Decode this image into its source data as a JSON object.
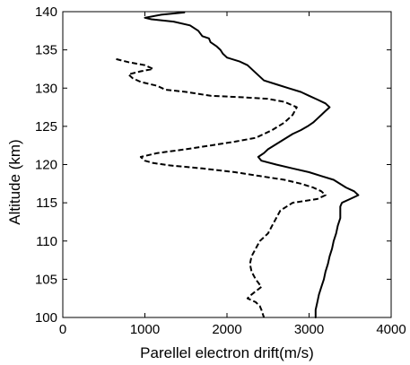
{
  "chart_data": {
    "type": "line",
    "xlabel": "Parellel electron drift(m/s)",
    "ylabel": "Altitude (km)",
    "xlim": [
      0,
      4000
    ],
    "ylim": [
      100,
      140
    ],
    "xticks": [
      0,
      1000,
      2000,
      3000,
      4000
    ],
    "yticks": [
      100,
      105,
      110,
      115,
      120,
      125,
      130,
      135,
      140
    ],
    "grid": false,
    "series": [
      {
        "style": "solid",
        "color": "#000000",
        "points": [
          [
            1480,
            139.9
          ],
          [
            1200,
            139.6
          ],
          [
            1000,
            139.2
          ],
          [
            1080,
            139.0
          ],
          [
            1350,
            138.7
          ],
          [
            1550,
            138.2
          ],
          [
            1650,
            137.5
          ],
          [
            1700,
            136.8
          ],
          [
            1780,
            136.5
          ],
          [
            1800,
            136.0
          ],
          [
            1870,
            135.5
          ],
          [
            1920,
            135.0
          ],
          [
            1950,
            134.5
          ],
          [
            2000,
            134.0
          ],
          [
            2150,
            133.5
          ],
          [
            2250,
            133.0
          ],
          [
            2350,
            132.0
          ],
          [
            2450,
            131.0
          ],
          [
            2600,
            130.5
          ],
          [
            2750,
            130.0
          ],
          [
            2900,
            129.5
          ],
          [
            3000,
            129.0
          ],
          [
            3100,
            128.5
          ],
          [
            3200,
            128.0
          ],
          [
            3250,
            127.5
          ],
          [
            3200,
            127.0
          ],
          [
            3150,
            126.5
          ],
          [
            3100,
            126.0
          ],
          [
            3050,
            125.5
          ],
          [
            2980,
            125.0
          ],
          [
            2900,
            124.5
          ],
          [
            2800,
            124.0
          ],
          [
            2650,
            123.0
          ],
          [
            2500,
            122.0
          ],
          [
            2450,
            121.5
          ],
          [
            2380,
            121.0
          ],
          [
            2420,
            120.5
          ],
          [
            2600,
            120.0
          ],
          [
            2800,
            119.5
          ],
          [
            3000,
            119.0
          ],
          [
            3150,
            118.5
          ],
          [
            3300,
            118.0
          ],
          [
            3450,
            117.0
          ],
          [
            3550,
            116.5
          ],
          [
            3600,
            116.0
          ],
          [
            3500,
            115.5
          ],
          [
            3400,
            115.0
          ],
          [
            3380,
            114.5
          ],
          [
            3380,
            113.0
          ],
          [
            3350,
            112.0
          ],
          [
            3330,
            111.0
          ],
          [
            3300,
            110.0
          ],
          [
            3280,
            109.0
          ],
          [
            3250,
            108.0
          ],
          [
            3230,
            107.0
          ],
          [
            3200,
            106.0
          ],
          [
            3180,
            105.0
          ],
          [
            3150,
            104.0
          ],
          [
            3120,
            103.0
          ],
          [
            3100,
            102.0
          ],
          [
            3080,
            101.0
          ],
          [
            3080,
            100.0
          ]
        ]
      },
      {
        "style": "dashed",
        "color": "#000000",
        "points": [
          [
            650,
            133.8
          ],
          [
            800,
            133.4
          ],
          [
            1000,
            133.0
          ],
          [
            1100,
            132.5
          ],
          [
            950,
            132.2
          ],
          [
            800,
            131.8
          ],
          [
            850,
            131.3
          ],
          [
            950,
            130.8
          ],
          [
            1150,
            130.3
          ],
          [
            1250,
            129.8
          ],
          [
            1500,
            129.5
          ],
          [
            1800,
            129.0
          ],
          [
            2200,
            128.8
          ],
          [
            2500,
            128.6
          ],
          [
            2700,
            128.2
          ],
          [
            2850,
            127.5
          ],
          [
            2800,
            126.5
          ],
          [
            2700,
            125.5
          ],
          [
            2550,
            124.5
          ],
          [
            2350,
            123.5
          ],
          [
            2100,
            123.0
          ],
          [
            1800,
            122.5
          ],
          [
            1500,
            122.0
          ],
          [
            1150,
            121.5
          ],
          [
            950,
            121.0
          ],
          [
            1000,
            120.5
          ],
          [
            1100,
            120.2
          ],
          [
            1300,
            119.9
          ],
          [
            1700,
            119.5
          ],
          [
            2100,
            119.0
          ],
          [
            2400,
            118.5
          ],
          [
            2700,
            118.0
          ],
          [
            2900,
            117.5
          ],
          [
            3050,
            117.0
          ],
          [
            3150,
            116.5
          ],
          [
            3200,
            116.0
          ],
          [
            3100,
            115.5
          ],
          [
            2800,
            115.0
          ],
          [
            2650,
            114.0
          ],
          [
            2600,
            113.0
          ],
          [
            2550,
            112.0
          ],
          [
            2500,
            111.0
          ],
          [
            2400,
            110.0
          ],
          [
            2350,
            109.0
          ],
          [
            2300,
            108.0
          ],
          [
            2280,
            107.0
          ],
          [
            2300,
            106.0
          ],
          [
            2350,
            105.0
          ],
          [
            2420,
            104.0
          ],
          [
            2300,
            103.0
          ],
          [
            2250,
            102.5
          ],
          [
            2350,
            102.0
          ],
          [
            2400,
            101.5
          ],
          [
            2420,
            101.0
          ],
          [
            2450,
            100.0
          ]
        ]
      }
    ]
  }
}
